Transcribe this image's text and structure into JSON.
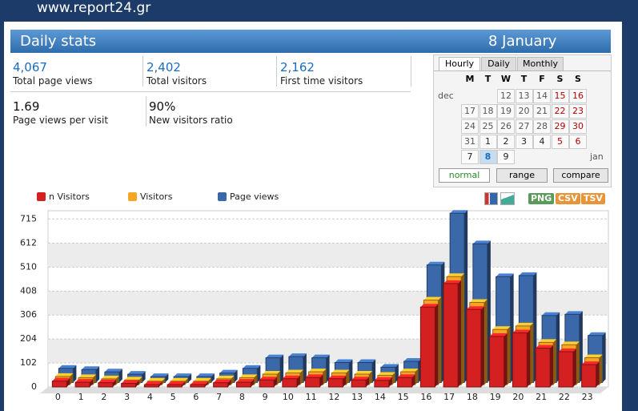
{
  "header": {
    "site": "www.report24.gr",
    "title": "Daily stats",
    "date": "8 January"
  },
  "stats": [
    {
      "value": "4,067",
      "label": "Total page views"
    },
    {
      "value": "2,402",
      "label": "Total visitors"
    },
    {
      "value": "2,162",
      "label": "First time visitors"
    },
    {
      "value": "1.69",
      "label": "Page views per visit"
    },
    {
      "value": "90%",
      "label": "New visitors ratio"
    }
  ],
  "calendar": {
    "tabs": [
      "Hourly",
      "Daily",
      "Monthly"
    ],
    "weekdays": [
      "M",
      "T",
      "W",
      "T",
      "F",
      "S",
      "S"
    ],
    "rows": [
      {
        "label": "dec",
        "days": [
          null,
          null,
          12,
          13,
          14,
          15,
          16
        ]
      },
      {
        "days": [
          17,
          18,
          19,
          20,
          21,
          22,
          23
        ]
      },
      {
        "days": [
          24,
          25,
          26,
          27,
          28,
          29,
          30
        ]
      },
      {
        "days": [
          31,
          1,
          2,
          3,
          4,
          5,
          6
        ]
      },
      {
        "days": [
          7,
          8,
          9
        ],
        "label_end": "jan"
      }
    ],
    "buttons": [
      "normal",
      "range",
      "compare"
    ]
  },
  "export": [
    "PNG",
    "CSV",
    "TSV"
  ],
  "chart_data": {
    "type": "bar3d",
    "categories": [
      "0",
      "1",
      "2",
      "3",
      "4",
      "5",
      "6",
      "7",
      "8",
      "9",
      "10",
      "11",
      "12",
      "13",
      "14",
      "15",
      "16",
      "17",
      "18",
      "19",
      "20",
      "21",
      "22",
      "23"
    ],
    "series": [
      {
        "name": "Page views",
        "color": "#3a68a8",
        "values": [
          60,
          55,
          45,
          35,
          25,
          25,
          25,
          40,
          60,
          105,
          110,
          105,
          85,
          85,
          65,
          90,
          500,
          720,
          590,
          450,
          455,
          285,
          290,
          200
        ]
      },
      {
        "name": "Visitors",
        "color": "#f5a623",
        "values": [
          35,
          30,
          25,
          20,
          15,
          15,
          15,
          25,
          30,
          45,
          50,
          55,
          50,
          45,
          40,
          55,
          360,
          460,
          350,
          235,
          250,
          180,
          170,
          115
        ]
      },
      {
        "name": "n Visitors",
        "color": "#d42020",
        "values": [
          25,
          20,
          18,
          15,
          10,
          10,
          10,
          18,
          20,
          30,
          35,
          40,
          35,
          30,
          28,
          40,
          340,
          440,
          330,
          215,
          230,
          165,
          150,
          95
        ]
      }
    ],
    "legend_order": [
      2,
      1,
      0
    ],
    "ylim": [
      0,
      750
    ],
    "yticks": [
      0,
      102,
      204,
      306,
      408,
      510,
      612,
      715
    ],
    "grid": true
  }
}
